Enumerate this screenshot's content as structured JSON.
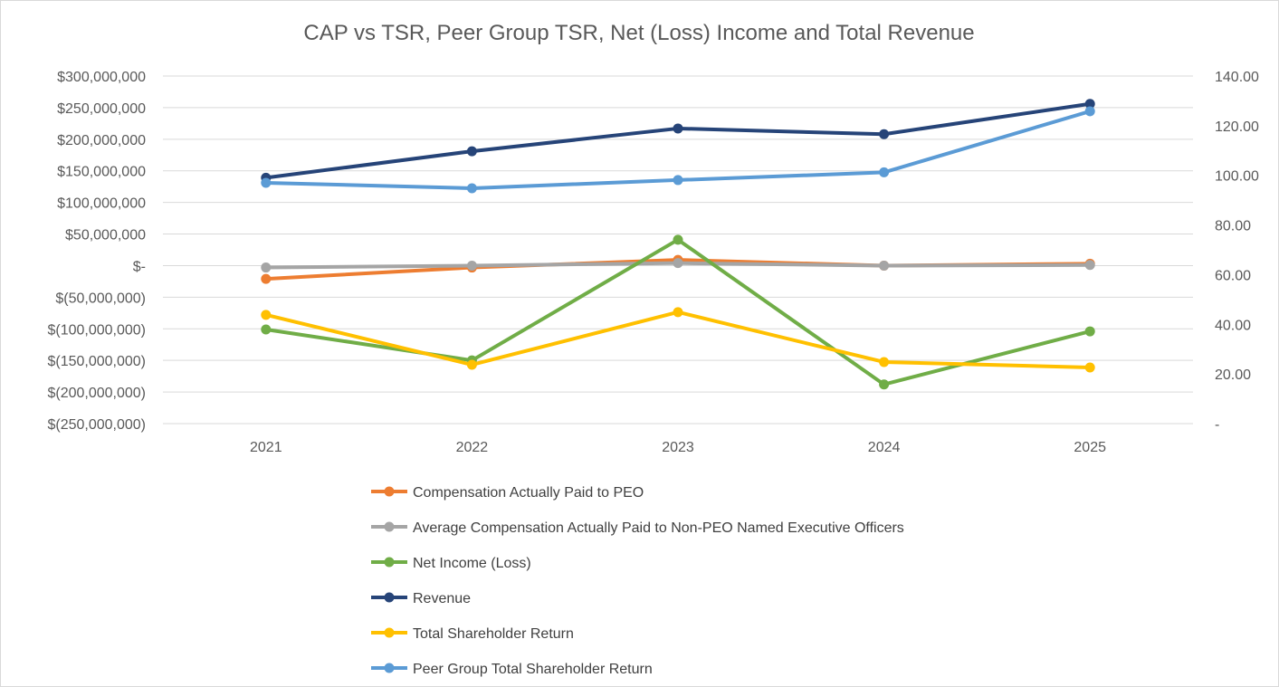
{
  "chart_data": {
    "type": "line",
    "title": "CAP vs TSR, Peer Group TSR, Net (Loss) Income and Total Revenue",
    "categories": [
      "2021",
      "2022",
      "2023",
      "2024",
      "2025"
    ],
    "left_axis": {
      "ylim": [
        -250000000,
        300000000
      ],
      "ticks": [
        300000000,
        250000000,
        200000000,
        150000000,
        100000000,
        50000000,
        0,
        -50000000,
        -100000000,
        -150000000,
        -200000000,
        -250000000
      ],
      "tick_labels": [
        "$300,000,000",
        "$250,000,000",
        "$200,000,000",
        "$150,000,000",
        "$100,000,000",
        "$50,000,000",
        "$-",
        "$(50,000,000)",
        "$(100,000,000)",
        "$(150,000,000)",
        "$(200,000,000)",
        "$(250,000,000)"
      ]
    },
    "right_axis": {
      "ylim": [
        0,
        140
      ],
      "ticks": [
        140,
        120,
        100,
        80,
        60,
        40,
        20,
        0
      ],
      "tick_labels": [
        "140.00",
        "120.00",
        "100.00",
        "80.00",
        "60.00",
        "40.00",
        "20.00",
        "-"
      ]
    },
    "grid": true,
    "legend_position": "bottom",
    "series": [
      {
        "name": "Compensation Actually Paid to PEO",
        "axis": "left",
        "color": "#ED7D31",
        "values": [
          -21000000,
          -3000000,
          9000000,
          0,
          3000000
        ]
      },
      {
        "name": "Average Compensation Actually Paid to Non-PEO Named Executive Officers",
        "axis": "left",
        "color": "#A5A5A5",
        "values": [
          -3000000,
          0,
          4000000,
          0,
          1000000
        ]
      },
      {
        "name": "Net Income (Loss)",
        "axis": "left",
        "color": "#70AD47",
        "values": [
          -101000000,
          -150000000,
          41000000,
          -188000000,
          -104000000
        ]
      },
      {
        "name": "Revenue",
        "axis": "left",
        "color": "#264478",
        "values": [
          139000000,
          181000000,
          217000000,
          208000000,
          256000000
        ]
      },
      {
        "name": "Total Shareholder Return",
        "axis": "right",
        "color": "#FFC000",
        "values": [
          43.8,
          23.7,
          44.9,
          24.8,
          22.6
        ]
      },
      {
        "name": "Peer Group Total Shareholder Return",
        "axis": "right",
        "color": "#5B9BD5",
        "values": [
          97.0,
          94.8,
          98.1,
          101.2,
          125.8
        ]
      }
    ]
  }
}
